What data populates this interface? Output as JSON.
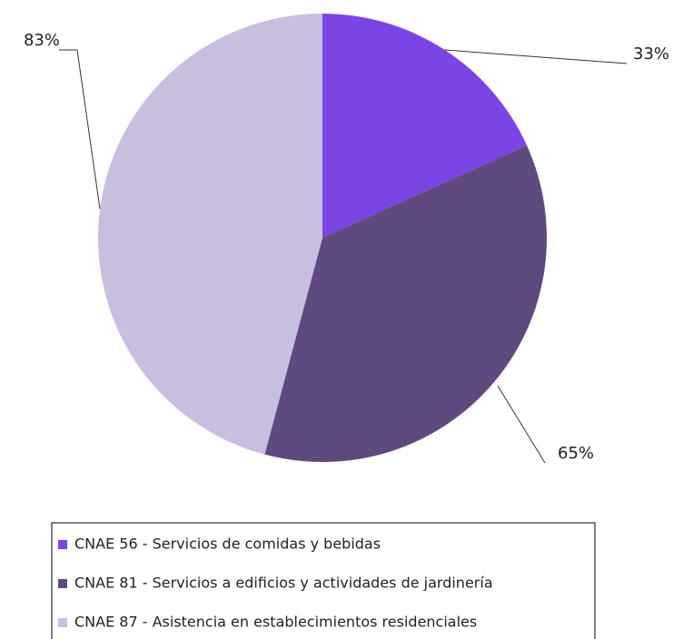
{
  "chart_data": {
    "type": "pie",
    "categories": [
      "CNAE 56 - Servicios de comidas y bebidas",
      "CNAE 81 - Servicios a edificios y actividades de jardinería",
      "CNAE 87 - Asistencia en establecimientos residenciales"
    ],
    "values": [
      33,
      65,
      83
    ],
    "value_labels": [
      "33%",
      "65%",
      "83%"
    ],
    "colors": [
      "#7b45e6",
      "#5e4a7e",
      "#c8bedd"
    ],
    "legend": "bottom"
  }
}
